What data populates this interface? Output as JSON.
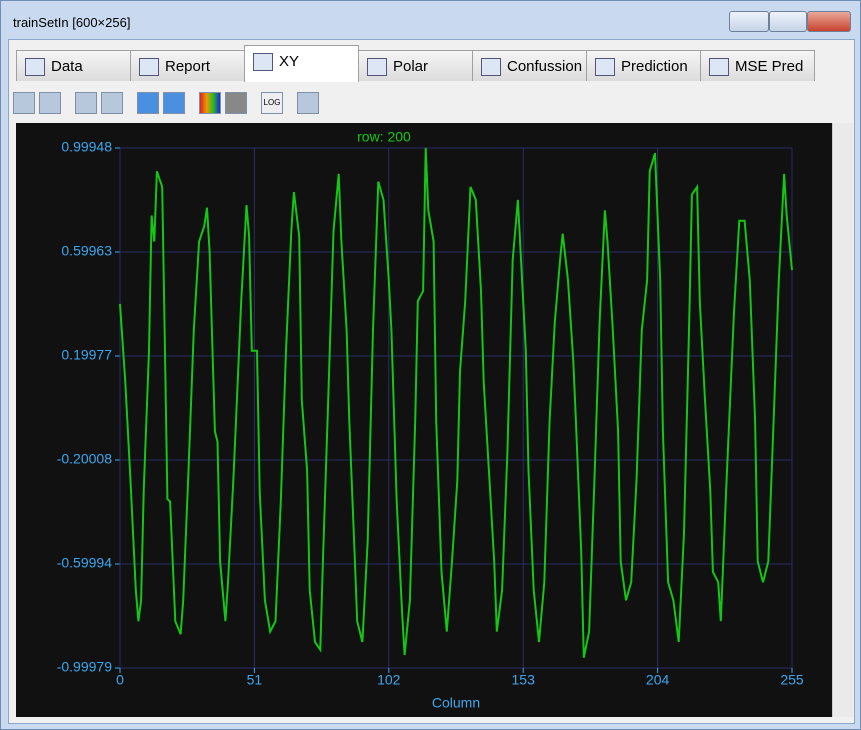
{
  "window": {
    "title": "trainSetIn [600×256]"
  },
  "tabs": [
    "Data",
    "Report",
    "XY",
    "Polar",
    "Confussion",
    "Prediction",
    "MSE Pred"
  ],
  "toolbar": {
    "log": "LOG"
  },
  "chart_data": {
    "type": "line",
    "title": "row: 200",
    "x_label": "Column",
    "color": "#13c713",
    "grid": true,
    "xlim": [
      0,
      255
    ],
    "xticks": [
      0,
      51,
      102,
      153,
      204,
      255
    ],
    "ylim": [
      -0.99979,
      0.99948
    ],
    "yticks": [
      0.99948,
      0.59963,
      0.19977,
      -0.20008,
      -0.59994,
      -0.99979
    ],
    "x": [
      0,
      2,
      4,
      6,
      7,
      8,
      9,
      11,
      12,
      13,
      14,
      16,
      17,
      18,
      19,
      21,
      23,
      24,
      26,
      28,
      30,
      32,
      33,
      34,
      36,
      37,
      38,
      40,
      41,
      43,
      44,
      46,
      48,
      49,
      50,
      52,
      53,
      55,
      57,
      59,
      61,
      63,
      65,
      66,
      68,
      69,
      71,
      72,
      74,
      76,
      77,
      79,
      81,
      83,
      84,
      86,
      87,
      89,
      90,
      92,
      94,
      96,
      98,
      100,
      102,
      103,
      105,
      107,
      108,
      110,
      112,
      113,
      115,
      116,
      117,
      119,
      120,
      122,
      124,
      126,
      128,
      129,
      131,
      133,
      135,
      137,
      138,
      140,
      142,
      143,
      145,
      147,
      149,
      151,
      152,
      154,
      155,
      157,
      159,
      161,
      163,
      165,
      167,
      168,
      170,
      172,
      173,
      175,
      176,
      178,
      180,
      182,
      184,
      185,
      187,
      189,
      190,
      192,
      194,
      196,
      198,
      200,
      201,
      203,
      205,
      206,
      208,
      210,
      212,
      214,
      216,
      217,
      219,
      220,
      222,
      224,
      225,
      227,
      228,
      230,
      233,
      235,
      237,
      239,
      241,
      242,
      244,
      246,
      248,
      250,
      252,
      253,
      255
    ],
    "values": [
      0.4,
      0.1,
      -0.28,
      -0.7,
      -0.82,
      -0.74,
      -0.32,
      0.22,
      0.74,
      0.64,
      0.91,
      0.85,
      0.26,
      -0.35,
      -0.36,
      -0.82,
      -0.87,
      -0.74,
      -0.24,
      0.3,
      0.64,
      0.7,
      0.77,
      0.6,
      -0.09,
      -0.13,
      -0.59,
      -0.82,
      -0.67,
      -0.28,
      -0.05,
      0.41,
      0.78,
      0.66,
      0.22,
      0.22,
      -0.32,
      -0.74,
      -0.86,
      -0.82,
      -0.36,
      0.22,
      0.68,
      0.83,
      0.66,
      0.03,
      -0.24,
      -0.7,
      -0.9,
      -0.93,
      -0.59,
      0.03,
      0.68,
      0.9,
      0.64,
      0.3,
      -0.05,
      -0.55,
      -0.82,
      -0.9,
      -0.51,
      0.3,
      0.87,
      0.8,
      0.49,
      0.3,
      -0.36,
      -0.78,
      -0.95,
      -0.74,
      -0.05,
      0.41,
      0.45,
      1.0,
      0.76,
      0.64,
      -0.05,
      -0.63,
      -0.86,
      -0.59,
      -0.28,
      0.14,
      0.41,
      0.85,
      0.8,
      0.45,
      0.1,
      -0.24,
      -0.59,
      -0.86,
      -0.7,
      -0.17,
      0.57,
      0.8,
      0.6,
      0.22,
      -0.24,
      -0.7,
      -0.9,
      -0.67,
      -0.05,
      0.33,
      0.57,
      0.67,
      0.49,
      0.18,
      -0.05,
      -0.55,
      -0.96,
      -0.86,
      -0.28,
      0.33,
      0.76,
      0.64,
      0.3,
      -0.09,
      -0.59,
      -0.74,
      -0.67,
      -0.28,
      0.3,
      0.49,
      0.91,
      0.98,
      0.49,
      -0.09,
      -0.67,
      -0.74,
      -0.9,
      -0.48,
      0.33,
      0.82,
      0.85,
      0.41,
      0.03,
      -0.32,
      -0.63,
      -0.67,
      -0.82,
      -0.32,
      0.37,
      0.72,
      0.72,
      0.49,
      -0.05,
      -0.59,
      -0.67,
      -0.59,
      -0.05,
      0.49,
      0.9,
      0.74,
      0.53
    ]
  }
}
